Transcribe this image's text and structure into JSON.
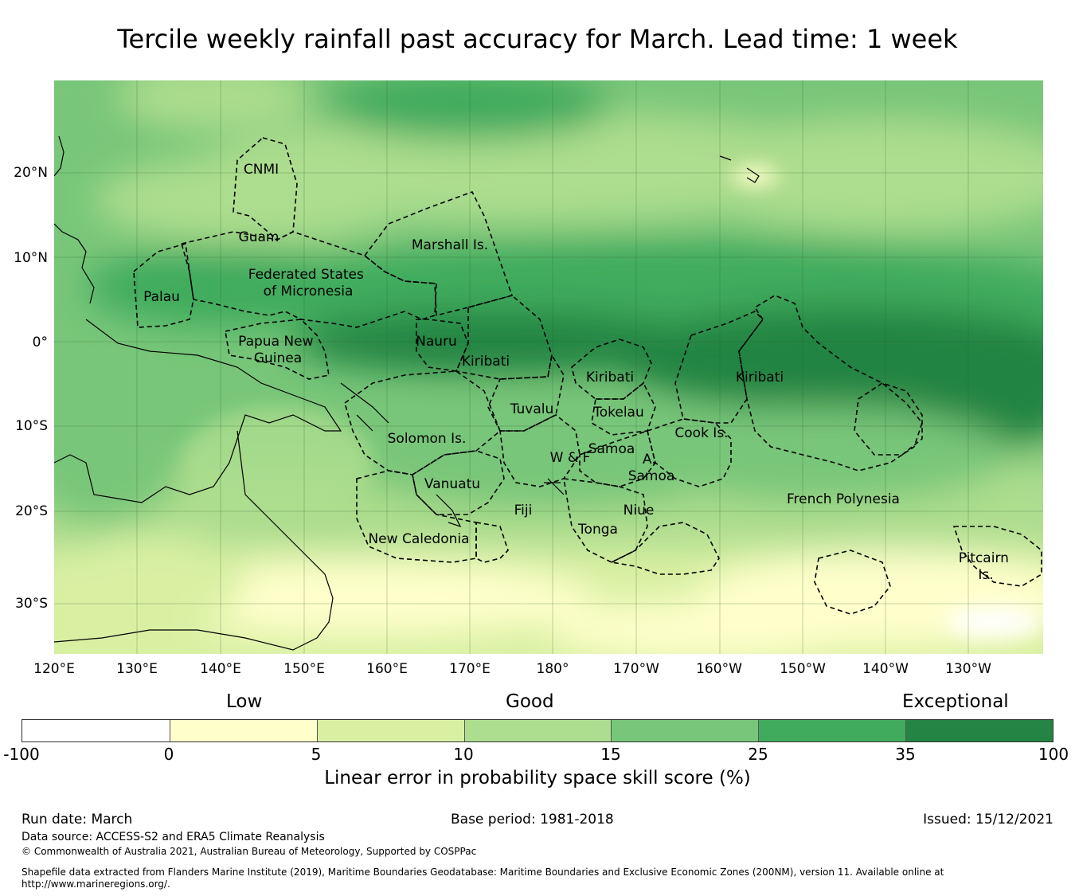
{
  "title": "Tercile weekly rainfall past accuracy for March. Lead time: 1 week",
  "map": {
    "lon_labels": [
      "120°E",
      "130°E",
      "140°E",
      "150°E",
      "160°E",
      "170°E",
      "180°",
      "170°W",
      "160°W",
      "150°W",
      "140°W",
      "130°W"
    ],
    "lat_labels": [
      "20°N",
      "10°N",
      "0°",
      "10°S",
      "20°S",
      "30°S"
    ],
    "region_labels": [
      "CNMI",
      "Guam",
      "Marshall Is.",
      "Federated States of Micronesia",
      "Palau",
      "Papua New Guinea",
      "Nauru",
      "Kiribati",
      "Kiribati",
      "Kiribati",
      "Tuvalu",
      "Tokelau",
      "Solomon Is.",
      "Cook Is.",
      "Samoa",
      "W & F",
      "A. Samoa",
      "Vanuatu",
      "Fiji",
      "Niue",
      "Tonga",
      "French Polynesia",
      "New Caledonia",
      "Pitcairn Is."
    ]
  },
  "legend": {
    "categories": [
      "Low",
      "Good",
      "Exceptional"
    ],
    "ticks": [
      "-100",
      "0",
      "5",
      "10",
      "15",
      "25",
      "35",
      "100"
    ],
    "colors": [
      "#ffffff",
      "#ffffcc",
      "#d9f0a3",
      "#addd8e",
      "#78c679",
      "#41ab5d",
      "#238443"
    ],
    "label": "Linear error in probability space skill score (%)"
  },
  "footer": {
    "run_date": "Run date: March",
    "base_period": "Base period: 1981-2018",
    "issued": "Issued: 15/12/2021",
    "data_source": "Data source: ACCESS-S2 and ERA5 Climate Reanalysis",
    "copyright": "© Commonwealth of Australia 2021, Australian Bureau of Meteorology, Supported by COSPPac",
    "shapefile": "Shapefile data extracted from Flanders Marine Institute (2019), Maritime Boundaries Geodatabase: Maritime Boundaries and Exclusive Economic Zones (200NM), version 11. Available online at http://www.marineregions.org/."
  }
}
